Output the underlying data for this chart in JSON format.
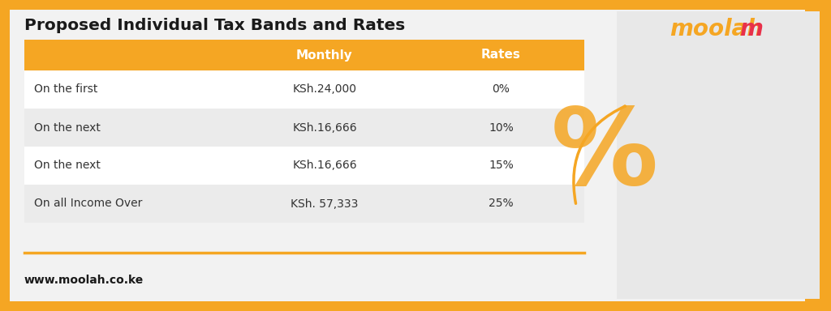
{
  "title": "Proposed Individual Tax Bands and Rates",
  "website": "www.moolah.co.ke",
  "header_cols": [
    "",
    "Monthly",
    "Rates"
  ],
  "rows": [
    [
      "On the first",
      "KSh.24,000",
      "0%"
    ],
    [
      "On the next",
      "KSh.16,666",
      "10%"
    ],
    [
      "On the next",
      "KSh.16,666",
      "15%"
    ],
    [
      "On all Income Over",
      "KSh. 57,333",
      "25%"
    ]
  ],
  "border_color": "#F5A623",
  "header_bg": "#F5A623",
  "header_text_color": "#FFFFFF",
  "row_alt_bg": "#EBEBEB",
  "row_plain_bg": "#FFFFFF",
  "title_color": "#1A1A1A",
  "body_text_color": "#333333",
  "website_color": "#1A1A1A",
  "bg_color": "#F0F0F0",
  "table_border_color": "#F5A623",
  "moolah_color_m": "#E8304A",
  "moolah_color_rest": "#F5A623",
  "percent_symbol_color": "#F5A623",
  "arrow_color": "#F5A623"
}
